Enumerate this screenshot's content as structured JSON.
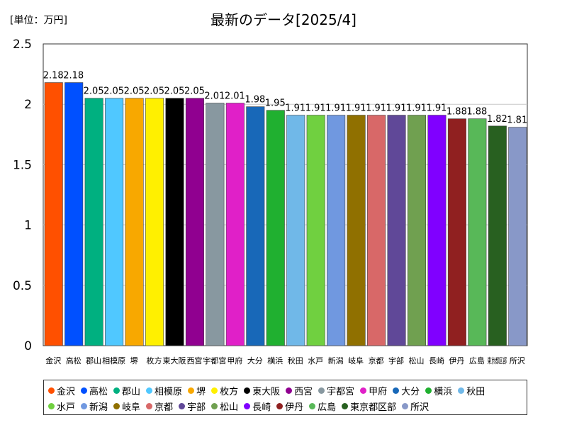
{
  "header": {
    "unit_label": "[単位：万円]",
    "title": "最新のデータ[2025/4]"
  },
  "chart_data": {
    "type": "bar",
    "title": "最新のデータ[2025/4]",
    "ylabel": "[単位：万円]",
    "ylim": [
      0,
      2.5
    ],
    "yticks": [
      "0",
      "0.5",
      "1",
      "1.5",
      "2",
      "2.5"
    ],
    "grid": true,
    "legend_position": "bottom",
    "categories": [
      "金沢",
      "高松",
      "郡山",
      "相模原",
      "堺",
      "枚方",
      "東大阪",
      "西宮",
      "宇都宮",
      "甲府",
      "大分",
      "横浜",
      "秋田",
      "水戸",
      "新潟",
      "岐阜",
      "京都",
      "宇部",
      "松山",
      "長崎",
      "伊丹",
      "広島",
      "東京都区部",
      "所沢"
    ],
    "values": [
      2.18,
      2.18,
      2.05,
      2.05,
      2.05,
      2.05,
      2.05,
      2.05,
      2.01,
      2.01,
      1.98,
      1.95,
      1.91,
      1.91,
      1.91,
      1.91,
      1.91,
      1.91,
      1.91,
      1.91,
      1.88,
      1.88,
      1.82,
      1.81
    ],
    "value_labels": [
      "2.18",
      "2.18",
      "2.05",
      "2.05",
      "2.05",
      "2.05",
      "2.05",
      "2.05",
      "2.01",
      "2.01",
      "1.98",
      "1.95",
      "1.91",
      "1.91",
      "1.91",
      "1.91",
      "1.91",
      "1.91",
      "1.91",
      "1.91",
      "1.88",
      "1.88",
      "1.82",
      "1.81"
    ],
    "colors": [
      "#ff5000",
      "#0050ff",
      "#00b080",
      "#50c8ff",
      "#f8a800",
      "#fff000",
      "#000000",
      "#900090",
      "#8898a0",
      "#e020c8",
      "#1868b8",
      "#20b030",
      "#70b8e8",
      "#70d040",
      "#7098e0",
      "#907000",
      "#d86868",
      "#604898",
      "#70a050",
      "#8000ff",
      "#902020",
      "#58b858",
      "#286020",
      "#8898c8"
    ]
  }
}
